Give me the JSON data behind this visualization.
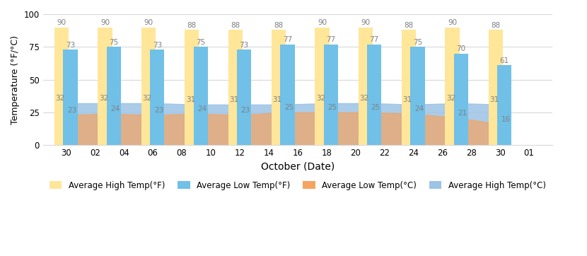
{
  "xlabel": "October (Date)",
  "ylabel": "Temperature (°F/°C)",
  "x_labels": [
    "30",
    "02",
    "04",
    "06",
    "08",
    "10",
    "12",
    "14",
    "16",
    "18",
    "20",
    "22",
    "24",
    "26",
    "28",
    "30",
    "01"
  ],
  "avg_high_f": [
    90,
    90,
    90,
    88,
    88,
    88,
    90,
    90,
    88,
    90,
    88
  ],
  "avg_low_f": [
    73,
    75,
    73,
    75,
    73,
    77,
    77,
    77,
    75,
    70,
    61
  ],
  "avg_low_c": [
    23,
    24,
    23,
    24,
    23,
    25,
    25,
    25,
    24,
    21,
    16
  ],
  "avg_high_c": [
    32,
    32,
    32,
    31,
    31,
    31,
    32,
    32,
    31,
    32,
    31
  ],
  "color_high_f": "#FFE699",
  "color_low_f": "#70C0E7",
  "color_low_c": "#F4A460",
  "color_high_c": "#9DC3E6",
  "ylim": [
    0,
    100
  ],
  "yticks": [
    0,
    25,
    50,
    75,
    100
  ],
  "bg_color": "#FFFFFF",
  "grid_color": "#D9D9D9",
  "legend_labels": [
    "Average High Temp(°F)",
    "Average Low Temp(°F)",
    "Average Low Temp(°C)",
    "Average High Temp(°C)"
  ]
}
